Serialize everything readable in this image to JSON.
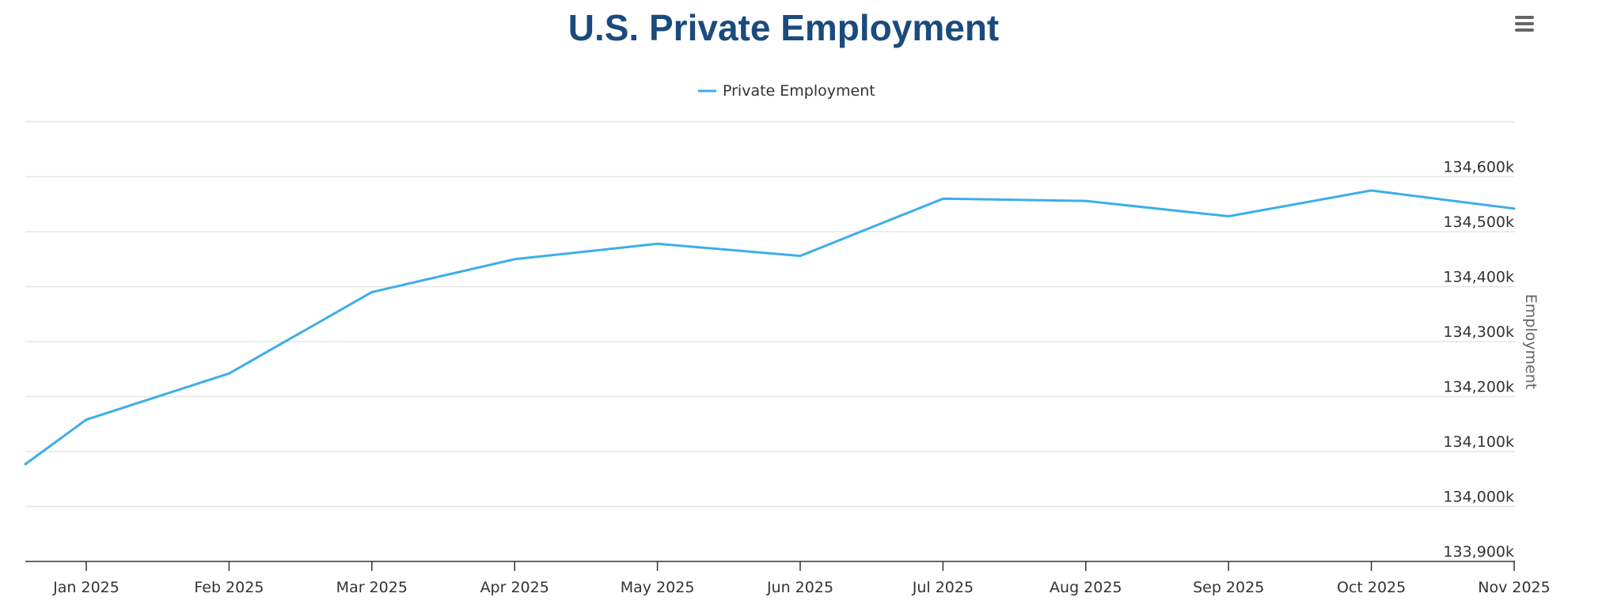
{
  "page": {
    "title": "U.S. Private Employment"
  },
  "menu": {
    "icon": "hamburger-menu-icon",
    "color": "#666666"
  },
  "colors": {
    "title": "#1b4b7c",
    "series": "#3daee9",
    "grid": "#e6e6e6",
    "axis": "#333333"
  },
  "chart_data": {
    "type": "line",
    "title": "U.S. Private Employment",
    "xlabel": "",
    "ylabel": "Employment",
    "ylim": [
      133900,
      134700
    ],
    "y_ticks": [
      {
        "value": 133900,
        "label": "133,900k"
      },
      {
        "value": 134000,
        "label": "134,000k"
      },
      {
        "value": 134100,
        "label": "134,100k"
      },
      {
        "value": 134200,
        "label": "134,200k"
      },
      {
        "value": 134300,
        "label": "134,300k"
      },
      {
        "value": 134400,
        "label": "134,400k"
      },
      {
        "value": 134500,
        "label": "134,500k"
      },
      {
        "value": 134600,
        "label": "134,600k"
      }
    ],
    "categories": [
      "Jan 2025",
      "Feb 2025",
      "Mar 2025",
      "Apr 2025",
      "May 2025",
      "Jun 2025",
      "Jul 2025",
      "Aug 2025",
      "Sep 2025",
      "Oct 2025",
      "Nov 2025"
    ],
    "x_start_offset": -0.43,
    "legend": {
      "position": "top-center"
    },
    "series": [
      {
        "name": "Private Employment",
        "x": [
          -0.43,
          0,
          1,
          2,
          3,
          4,
          5,
          6,
          7,
          8,
          9,
          10
        ],
        "values": [
          134077,
          134158,
          134242,
          134390,
          134450,
          134478,
          134456,
          134560,
          134556,
          134528,
          134575,
          134542
        ]
      }
    ]
  }
}
